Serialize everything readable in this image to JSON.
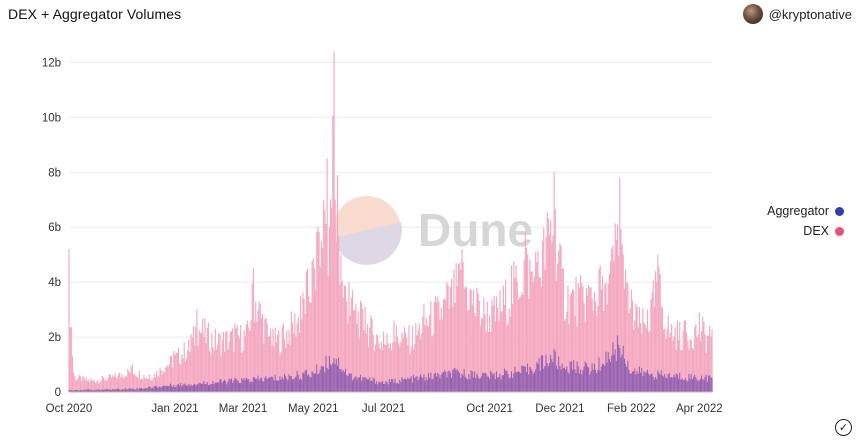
{
  "header": {
    "title": "DEX + Aggregator Volumes",
    "author": "@kryptonative"
  },
  "watermark": {
    "text": "Dune"
  },
  "status": {
    "check_icon": "check-circle-icon"
  },
  "colors": {
    "dex": "#ec4d79",
    "dex_fill": "#f4a8bf",
    "aggregator": "#2b3fb0",
    "aggregator_fill": "#8c5ab0"
  },
  "chart_data": {
    "type": "bar",
    "title": "DEX + Aggregator Volumes",
    "xlabel": "",
    "ylabel": "",
    "x_range": [
      "2020-10-01",
      "2022-04-12"
    ],
    "x_ticks": [
      "Oct 2020",
      "Jan 2021",
      "Mar 2021",
      "May 2021",
      "Jul 2021",
      "Oct 2021",
      "Dec 2021",
      "Feb 2022",
      "Apr 2022"
    ],
    "y_ticks": [
      "0",
      "2b",
      "4b",
      "6b",
      "8b",
      "10b",
      "12b"
    ],
    "ylim": [
      0,
      12600000000
    ],
    "stacked": false,
    "grid": true,
    "legend_position": "right",
    "series": [
      {
        "name": "DEX",
        "color": "#ec4d79",
        "points": [
          [
            "2020-10-01",
            5200000000
          ],
          [
            "2020-10-05",
            700000000
          ],
          [
            "2020-10-20",
            500000000
          ],
          [
            "2020-11-10",
            700000000
          ],
          [
            "2020-11-25",
            1000000000
          ],
          [
            "2020-12-10",
            650000000
          ],
          [
            "2020-12-31",
            1500000000
          ],
          [
            "2021-01-15",
            2100000000
          ],
          [
            "2021-01-20",
            3000000000
          ],
          [
            "2021-02-05",
            2300000000
          ],
          [
            "2021-02-22",
            2500000000
          ],
          [
            "2021-03-05",
            2600000000
          ],
          [
            "2021-03-10",
            4500000000
          ],
          [
            "2021-03-25",
            2300000000
          ],
          [
            "2021-04-05",
            2500000000
          ],
          [
            "2021-04-20",
            3500000000
          ],
          [
            "2021-04-25",
            4400000000
          ],
          [
            "2021-05-05",
            6000000000
          ],
          [
            "2021-05-10",
            7000000000
          ],
          [
            "2021-05-13",
            8500000000
          ],
          [
            "2021-05-15",
            6000000000
          ],
          [
            "2021-05-19",
            12400000000
          ],
          [
            "2021-05-20",
            7000000000
          ],
          [
            "2021-05-22",
            7900000000
          ],
          [
            "2021-05-25",
            5000000000
          ],
          [
            "2021-06-01",
            4000000000
          ],
          [
            "2021-06-15",
            3100000000
          ],
          [
            "2021-07-01",
            2200000000
          ],
          [
            "2021-07-10",
            2600000000
          ],
          [
            "2021-07-26",
            2400000000
          ],
          [
            "2021-08-05",
            3200000000
          ],
          [
            "2021-08-15",
            3500000000
          ],
          [
            "2021-08-25",
            4000000000
          ],
          [
            "2021-09-07",
            5200000000
          ],
          [
            "2021-09-20",
            3800000000
          ],
          [
            "2021-10-05",
            3500000000
          ],
          [
            "2021-10-20",
            4600000000
          ],
          [
            "2021-11-01",
            5800000000
          ],
          [
            "2021-11-10",
            5100000000
          ],
          [
            "2021-11-26",
            8000000000
          ],
          [
            "2021-12-04",
            4500000000
          ],
          [
            "2021-12-15",
            4200000000
          ],
          [
            "2022-01-05",
            4600000000
          ],
          [
            "2022-01-10",
            4000000000
          ],
          [
            "2022-01-22",
            7800000000
          ],
          [
            "2022-01-25",
            5000000000
          ],
          [
            "2022-02-05",
            3200000000
          ],
          [
            "2022-02-15",
            3000000000
          ],
          [
            "2022-02-24",
            5000000000
          ],
          [
            "2022-03-05",
            2800000000
          ],
          [
            "2022-03-20",
            2600000000
          ],
          [
            "2022-04-01",
            2900000000
          ],
          [
            "2022-04-10",
            2400000000
          ]
        ]
      },
      {
        "name": "Aggregator",
        "color": "#2b3fb0",
        "points": [
          [
            "2020-10-01",
            80000000
          ],
          [
            "2020-11-01",
            100000000
          ],
          [
            "2020-12-01",
            150000000
          ],
          [
            "2021-01-01",
            300000000
          ],
          [
            "2021-02-01",
            400000000
          ],
          [
            "2021-03-01",
            500000000
          ],
          [
            "2021-04-01",
            600000000
          ],
          [
            "2021-05-01",
            800000000
          ],
          [
            "2021-05-19",
            1500000000
          ],
          [
            "2021-06-01",
            700000000
          ],
          [
            "2021-07-01",
            400000000
          ],
          [
            "2021-08-01",
            600000000
          ],
          [
            "2021-09-01",
            800000000
          ],
          [
            "2021-10-01",
            700000000
          ],
          [
            "2021-11-01",
            900000000
          ],
          [
            "2021-11-26",
            1500000000
          ],
          [
            "2021-12-01",
            1100000000
          ],
          [
            "2022-01-01",
            1000000000
          ],
          [
            "2022-01-22",
            2000000000
          ],
          [
            "2022-02-01",
            900000000
          ],
          [
            "2022-03-01",
            700000000
          ],
          [
            "2022-04-10",
            600000000
          ]
        ]
      }
    ]
  }
}
